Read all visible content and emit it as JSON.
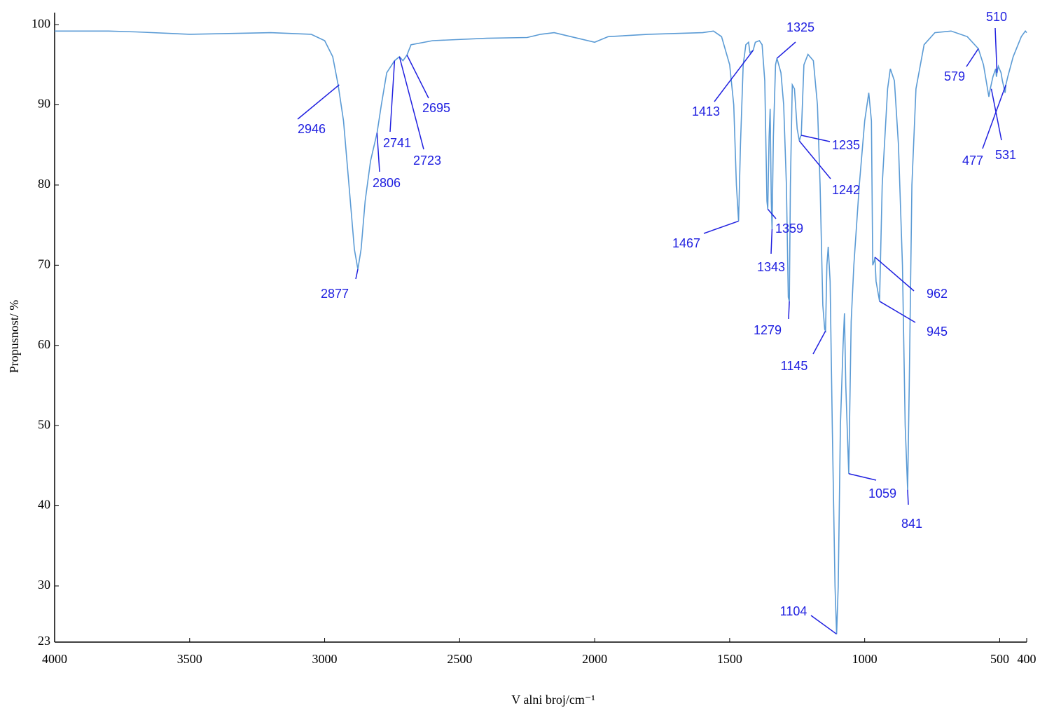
{
  "chart_data": {
    "type": "line",
    "x_label": "V alni broj/cm⁻¹",
    "y_label": "Propusnost/ %",
    "color": "#5b9bd5",
    "annotation_color": "#2020e0",
    "xlim": [
      4000,
      400
    ],
    "ylim": [
      23,
      101.5
    ],
    "xticks": [
      4000,
      3500,
      3000,
      2500,
      2000,
      1500,
      1000,
      500,
      400
    ],
    "yticks": [
      23,
      30,
      40,
      50,
      60,
      70,
      80,
      90,
      100
    ],
    "x": [
      4000,
      3800,
      3700,
      3500,
      3200,
      3050,
      3000,
      2970,
      2950,
      2930,
      2910,
      2890,
      2877,
      2865,
      2850,
      2830,
      2806,
      2790,
      2770,
      2741,
      2723,
      2710,
      2695,
      2680,
      2600,
      2400,
      2250,
      2200,
      2150,
      2100,
      2000,
      1950,
      1800,
      1600,
      1560,
      1530,
      1500,
      1485,
      1475,
      1467,
      1460,
      1450,
      1440,
      1430,
      1425,
      1413,
      1405,
      1390,
      1380,
      1370,
      1362,
      1359,
      1354,
      1350,
      1346,
      1343,
      1338,
      1330,
      1325,
      1310,
      1300,
      1290,
      1283,
      1279,
      1275,
      1268,
      1260,
      1250,
      1242,
      1238,
      1235,
      1225,
      1210,
      1190,
      1175,
      1165,
      1155,
      1148,
      1145,
      1140,
      1135,
      1128,
      1120,
      1110,
      1104,
      1098,
      1090,
      1080,
      1075,
      1070,
      1059,
      1050,
      1040,
      1020,
      1000,
      985,
      975,
      970,
      965,
      962,
      958,
      950,
      945,
      935,
      915,
      905,
      890,
      875,
      860,
      850,
      841,
      835,
      825,
      810,
      780,
      740,
      680,
      620,
      579,
      560,
      545,
      540,
      535,
      525,
      515,
      512,
      510,
      505,
      495,
      490,
      480,
      477,
      470,
      450,
      420,
      405,
      400
    ],
    "values": [
      99.2,
      99.2,
      99.1,
      98.8,
      99,
      98.8,
      98,
      96,
      92.5,
      88,
      80,
      72,
      69.5,
      72,
      78,
      83,
      86.5,
      90,
      94,
      95.5,
      96,
      95.5,
      96.2,
      97.5,
      98,
      98.3,
      98.4,
      98.8,
      99,
      98.6,
      97.8,
      98.5,
      98.8,
      99,
      99.2,
      98.5,
      95,
      90,
      80,
      75.5,
      85,
      95,
      97.5,
      97.8,
      96.5,
      96.8,
      97.8,
      98,
      97.5,
      93,
      78,
      77,
      86,
      89.5,
      78,
      74.5,
      86,
      95,
      95.8,
      94,
      90,
      80,
      66,
      65.5,
      80,
      92.5,
      92,
      87,
      85.5,
      86,
      86.2,
      95,
      96.3,
      95.5,
      90,
      80,
      65,
      62,
      61.8,
      70,
      72.3,
      68,
      50,
      30,
      24,
      30,
      50,
      60,
      64,
      55,
      44,
      63,
      70,
      80,
      88,
      91.5,
      88,
      70,
      70.5,
      71,
      68,
      66.5,
      65.5,
      80,
      92,
      94.5,
      93,
      85,
      70,
      50,
      42,
      55,
      80,
      92,
      97.5,
      99,
      99.2,
      98.5,
      97,
      95,
      92,
      91,
      92,
      93.5,
      94.5,
      93.5,
      94,
      94.8,
      94,
      93,
      91.5,
      92.5,
      93.5,
      96,
      98.5,
      99.2,
      99
    ],
    "annotations": [
      {
        "text": "2946",
        "x": 2946,
        "y": 92.5
      },
      {
        "text": "2877",
        "x": 2877,
        "y": 69.5
      },
      {
        "text": "2806",
        "x": 2806,
        "y": 86.5
      },
      {
        "text": "2741",
        "x": 2741,
        "y": 95.5
      },
      {
        "text": "2723",
        "x": 2723,
        "y": 96
      },
      {
        "text": "2695",
        "x": 2695,
        "y": 96.2
      },
      {
        "text": "1467",
        "x": 1467,
        "y": 75.5
      },
      {
        "text": "1413",
        "x": 1413,
        "y": 96.8
      },
      {
        "text": "1325",
        "x": 1325,
        "y": 95.8
      },
      {
        "text": "1359",
        "x": 1359,
        "y": 77
      },
      {
        "text": "1343",
        "x": 1343,
        "y": 74.5
      },
      {
        "text": "1279",
        "x": 1279,
        "y": 65.5
      },
      {
        "text": "1235",
        "x": 1235,
        "y": 86.2
      },
      {
        "text": "1242",
        "x": 1242,
        "y": 85.5
      },
      {
        "text": "1145",
        "x": 1145,
        "y": 61.8
      },
      {
        "text": "1104",
        "x": 1104,
        "y": 24
      },
      {
        "text": "1059",
        "x": 1059,
        "y": 44
      },
      {
        "text": "841",
        "x": 841,
        "y": 42
      },
      {
        "text": "962",
        "x": 962,
        "y": 71
      },
      {
        "text": "945",
        "x": 945,
        "y": 65.5
      },
      {
        "text": "579",
        "x": 579,
        "y": 97
      },
      {
        "text": "510",
        "x": 510,
        "y": 94
      },
      {
        "text": "477",
        "x": 477,
        "y": 92.5
      },
      {
        "text": "531",
        "x": 531,
        "y": 92
      }
    ]
  }
}
